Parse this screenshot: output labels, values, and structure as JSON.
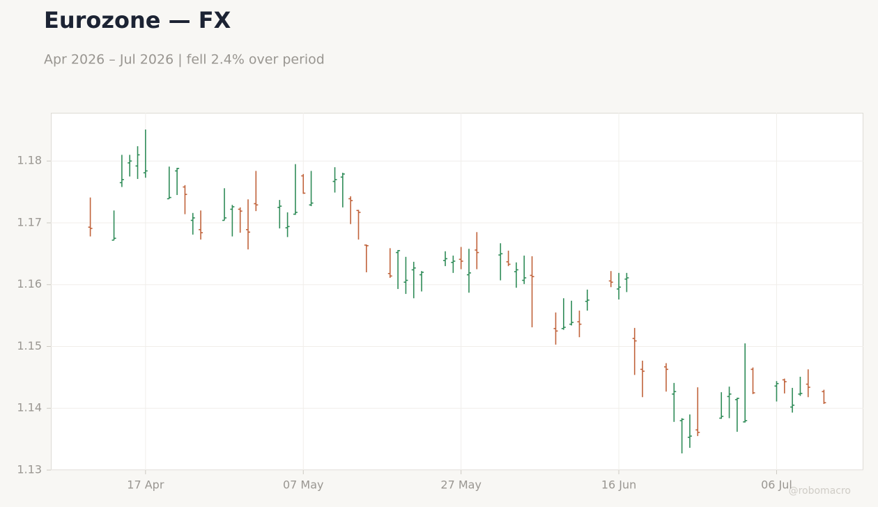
{
  "chart_data": {
    "type": "ohlc",
    "title": "Eurozone — FX",
    "subtitle": "Apr 2026 – Jul 2026 | fell 2.4% over period",
    "watermark": "@robomacro",
    "up_color": "#2e8b57",
    "down_color": "#c0623a",
    "grid": true,
    "xlim": [
      "2026-04-05",
      "2026-07-17"
    ],
    "xticks": [
      {
        "value": "2026-04-17",
        "label": "17 Apr"
      },
      {
        "value": "2026-05-07",
        "label": "07 May"
      },
      {
        "value": "2026-05-27",
        "label": "27 May"
      },
      {
        "value": "2026-06-16",
        "label": "16 Jun"
      },
      {
        "value": "2026-07-06",
        "label": "06 Jul"
      }
    ],
    "ylim": [
      1.13,
      1.1878
    ],
    "yticks": [
      {
        "value": 1.13,
        "label": "1.13"
      },
      {
        "value": 1.14,
        "label": "1.14"
      },
      {
        "value": 1.15,
        "label": "1.15"
      },
      {
        "value": 1.16,
        "label": "1.16"
      },
      {
        "value": 1.17,
        "label": "1.17"
      },
      {
        "value": 1.18,
        "label": "1.18"
      }
    ],
    "x": [
      "2026-04-10",
      "2026-04-13",
      "2026-04-14",
      "2026-04-15",
      "2026-04-16",
      "2026-04-17",
      "2026-04-20",
      "2026-04-21",
      "2026-04-22",
      "2026-04-23",
      "2026-04-24",
      "2026-04-27",
      "2026-04-28",
      "2026-04-29",
      "2026-04-30",
      "2026-05-01",
      "2026-05-04",
      "2026-05-05",
      "2026-05-06",
      "2026-05-07",
      "2026-05-08",
      "2026-05-11",
      "2026-05-12",
      "2026-05-13",
      "2026-05-14",
      "2026-05-15",
      "2026-05-18",
      "2026-05-19",
      "2026-05-20",
      "2026-05-21",
      "2026-05-22",
      "2026-05-25",
      "2026-05-26",
      "2026-05-27",
      "2026-05-28",
      "2026-05-29",
      "2026-06-01",
      "2026-06-02",
      "2026-06-03",
      "2026-06-04",
      "2026-06-05",
      "2026-06-08",
      "2026-06-09",
      "2026-06-10",
      "2026-06-11",
      "2026-06-12",
      "2026-06-15",
      "2026-06-16",
      "2026-06-17",
      "2026-06-18",
      "2026-06-19",
      "2026-06-22",
      "2026-06-23",
      "2026-06-24",
      "2026-06-25",
      "2026-06-26",
      "2026-06-29",
      "2026-06-30",
      "2026-07-01",
      "2026-07-02",
      "2026-07-03",
      "2026-07-06",
      "2026-07-07",
      "2026-07-08",
      "2026-07-09",
      "2026-07-10",
      "2026-07-12"
    ],
    "open": [
      1.1693,
      1.1672,
      1.1765,
      1.1797,
      1.1792,
      1.1781,
      1.1739,
      1.1784,
      1.1758,
      1.1704,
      1.1689,
      1.1704,
      1.1722,
      1.1722,
      1.1689,
      1.1731,
      1.1725,
      1.1692,
      1.1714,
      1.1776,
      1.1729,
      1.1767,
      1.1774,
      1.1739,
      1.172,
      1.1664,
      1.1618,
      1.1652,
      1.1604,
      1.1624,
      1.1616,
      1.1639,
      1.1636,
      1.1641,
      1.1616,
      1.1656,
      1.1648,
      1.1637,
      1.1621,
      1.1607,
      1.1615,
      1.1529,
      1.1529,
      1.1536,
      1.154,
      1.1573,
      1.1606,
      1.1593,
      1.1609,
      1.1513,
      1.1463,
      1.1467,
      1.1423,
      1.138,
      1.1353,
      1.1365,
      1.1384,
      1.1419,
      1.1414,
      1.1378,
      1.1463,
      1.1436,
      1.1446,
      1.1402,
      1.1423,
      1.1439,
      1.1427
    ],
    "high": [
      1.1741,
      1.172,
      1.181,
      1.181,
      1.1824,
      1.1851,
      1.1791,
      1.1789,
      1.1761,
      1.1716,
      1.172,
      1.1756,
      1.1729,
      1.1725,
      1.1738,
      1.1784,
      1.1737,
      1.1717,
      1.1795,
      1.1779,
      1.1784,
      1.179,
      1.1781,
      1.1743,
      1.1721,
      1.1665,
      1.1659,
      1.1656,
      1.1645,
      1.1637,
      1.1622,
      1.1654,
      1.1647,
      1.1661,
      1.1658,
      1.1685,
      1.1667,
      1.1655,
      1.1636,
      1.1647,
      1.1646,
      1.1555,
      1.1578,
      1.1574,
      1.1558,
      1.1592,
      1.1622,
      1.1619,
      1.1619,
      1.153,
      1.1477,
      1.1473,
      1.1441,
      1.1384,
      1.139,
      1.1434,
      1.1426,
      1.1435,
      1.1417,
      1.1505,
      1.1466,
      1.1444,
      1.1448,
      1.1433,
      1.1451,
      1.1463,
      1.143
    ],
    "low": [
      1.1678,
      1.1672,
      1.1758,
      1.1775,
      1.1771,
      1.1773,
      1.1739,
      1.1745,
      1.1714,
      1.1681,
      1.1673,
      1.1704,
      1.1678,
      1.1684,
      1.1657,
      1.1719,
      1.1691,
      1.1677,
      1.1713,
      1.1747,
      1.1727,
      1.1749,
      1.1725,
      1.1698,
      1.1673,
      1.162,
      1.1611,
      1.1593,
      1.1585,
      1.1578,
      1.1589,
      1.163,
      1.1619,
      1.1625,
      1.1587,
      1.1625,
      1.1607,
      1.163,
      1.1595,
      1.1601,
      1.1531,
      1.1503,
      1.1527,
      1.1534,
      1.1515,
      1.1558,
      1.1596,
      1.1576,
      1.1588,
      1.1454,
      1.1418,
      1.1427,
      1.1378,
      1.1327,
      1.1336,
      1.1355,
      1.1383,
      1.1384,
      1.1362,
      1.1377,
      1.1423,
      1.1411,
      1.1424,
      1.1393,
      1.142,
      1.1418,
      1.1407
    ],
    "close": [
      1.1691,
      1.1675,
      1.177,
      1.18,
      1.181,
      1.1784,
      1.1741,
      1.1788,
      1.1746,
      1.1708,
      1.1684,
      1.1708,
      1.1726,
      1.1719,
      1.1685,
      1.1729,
      1.1727,
      1.1694,
      1.1717,
      1.1748,
      1.1732,
      1.177,
      1.1779,
      1.1736,
      1.1717,
      1.1663,
      1.1614,
      1.1655,
      1.1607,
      1.1627,
      1.162,
      1.1642,
      1.1638,
      1.1638,
      1.1619,
      1.1652,
      1.165,
      1.1633,
      1.1624,
      1.1611,
      1.1613,
      1.1525,
      1.1531,
      1.1539,
      1.1536,
      1.1575,
      1.1604,
      1.1596,
      1.1611,
      1.1509,
      1.146,
      1.1463,
      1.1427,
      1.1382,
      1.1355,
      1.1361,
      1.1387,
      1.1423,
      1.1416,
      1.138,
      1.1425,
      1.144,
      1.1443,
      1.1405,
      1.1424,
      1.1434,
      1.1409
    ]
  }
}
